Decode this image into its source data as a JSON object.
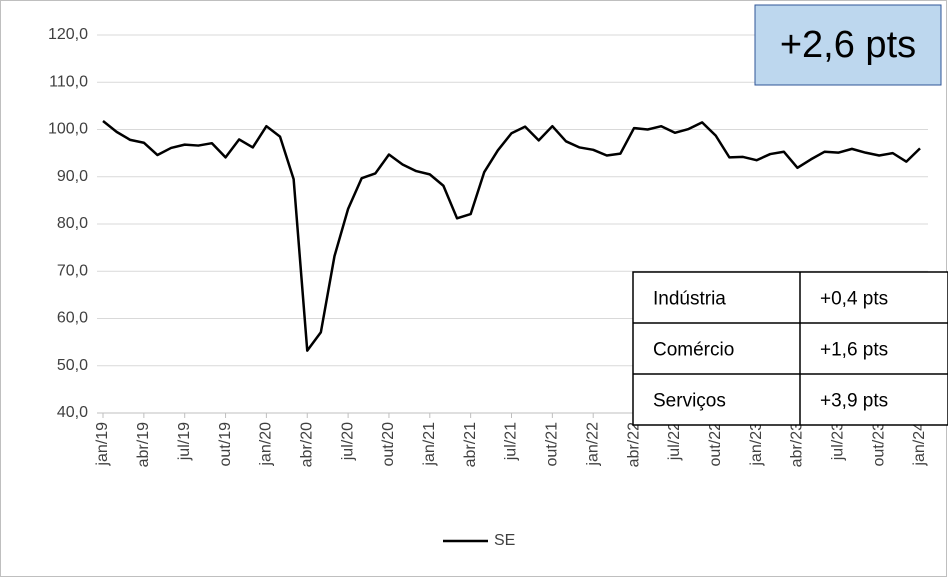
{
  "chart_data": {
    "type": "line",
    "categories": [
      "jan/19",
      null,
      null,
      "abr/19",
      null,
      null,
      "jul/19",
      null,
      null,
      "out/19",
      null,
      null,
      "jan/20",
      null,
      null,
      "abr/20",
      null,
      null,
      "jul/20",
      null,
      null,
      "out/20",
      null,
      null,
      "jan/21",
      null,
      null,
      "abr/21",
      null,
      null,
      "jul/21",
      null,
      null,
      "out/21",
      null,
      null,
      "jan/22",
      null,
      null,
      "abr/22",
      null,
      null,
      "jul/22",
      null,
      null,
      "out/22",
      null,
      null,
      "jan/23",
      null,
      null,
      "abr/23",
      null,
      null,
      "jul/23",
      null,
      null,
      "out/23",
      null,
      null,
      "jan/24"
    ],
    "series": [
      {
        "name": "SE",
        "color": "#000000",
        "values": [
          101.8,
          99.5,
          97.8,
          97.2,
          94.6,
          96.1,
          96.8,
          96.6,
          97.1,
          94.1,
          97.9,
          96.2,
          100.7,
          98.5,
          89.5,
          53.2,
          57.1,
          73.2,
          83.2,
          89.7,
          90.7,
          94.7,
          92.6,
          91.2,
          90.5,
          88.1,
          81.2,
          82.1,
          91.0,
          95.6,
          99.2,
          100.6,
          97.7,
          100.7,
          97.5,
          96.2,
          95.7,
          94.5,
          94.9,
          100.3,
          100.0,
          100.7,
          99.3,
          100.1,
          101.5,
          98.7,
          94.1,
          94.2,
          93.5,
          94.8,
          95.3,
          91.9,
          93.7,
          95.3,
          95.1,
          95.9,
          95.1,
          94.5,
          95.0,
          93.2,
          96.0
        ]
      }
    ],
    "ylim": [
      40,
      120
    ],
    "yticks": [
      {
        "value": 40,
        "label": "40,0"
      },
      {
        "value": 50,
        "label": "50,0"
      },
      {
        "value": 60,
        "label": "60,0"
      },
      {
        "value": 70,
        "label": "70,0"
      },
      {
        "value": 80,
        "label": "80,0"
      },
      {
        "value": 90,
        "label": "90,0"
      },
      {
        "value": 100,
        "label": "100,0"
      },
      {
        "value": 110,
        "label": "110,0"
      },
      {
        "value": 120,
        "label": "120,0"
      }
    ],
    "grid": true,
    "legend": "bottom",
    "annotation": "+2,6 pts",
    "table": {
      "rows": [
        [
          "Indústria",
          "+0,4 pts"
        ],
        [
          "Comércio",
          "+1,6 pts"
        ],
        [
          "Serviços",
          "+3,9 pts"
        ]
      ]
    }
  }
}
